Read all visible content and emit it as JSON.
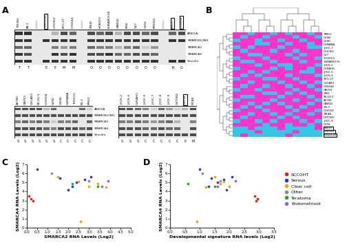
{
  "panel_labels": [
    "A",
    "B",
    "C",
    "D"
  ],
  "proteins": [
    "ARID1A",
    "SMARCB1/INI1",
    "SMARCA2",
    "SMARCA4",
    "Vinculin"
  ],
  "boxed": [
    "TOV112D",
    "BIN-67",
    "COV434",
    "OVK18"
  ],
  "blots": [
    {
      "lanes": [
        "TYK-NU",
        "PA-1",
        "ladder",
        "TOV112D",
        "COV362",
        "EFO-27",
        "COV644",
        "ladder",
        "SNU8",
        "HOB910",
        "KURAMOCHI",
        "OAW42",
        "RKN",
        "OV7",
        "OV56",
        "RMUGS",
        "ladder",
        "BIN-67",
        "COV434"
      ],
      "codes": [
        "T",
        "T",
        null,
        "E",
        "E",
        "M",
        "M",
        null,
        "O",
        "O",
        "O",
        "O",
        "O",
        "O",
        "O",
        "O",
        null,
        "R",
        "G"
      ],
      "show_proteins": true,
      "bands": [
        [
          0.8,
          0.8,
          0,
          0,
          0.3,
          0.7,
          0.6,
          0,
          0.7,
          0.6,
          0.7,
          0.3,
          0.7,
          0.7,
          0.6,
          0.7,
          0,
          0.6,
          0.7
        ],
        [
          0.8,
          0.8,
          0,
          0.8,
          0.8,
          0.8,
          0.8,
          0,
          0.8,
          0.8,
          0.8,
          0.8,
          0.8,
          0.8,
          0.8,
          0.8,
          0,
          0.8,
          0.8
        ],
        [
          0.6,
          0.6,
          0,
          0,
          0.5,
          0.4,
          0.5,
          0,
          0.6,
          0.5,
          0.5,
          0.3,
          0.5,
          0.6,
          0.2,
          0.4,
          0,
          0,
          0
        ],
        [
          0.8,
          0.7,
          0,
          0,
          0.8,
          0.7,
          0.8,
          0,
          0.7,
          0.7,
          0.8,
          0.6,
          0.6,
          0.7,
          0.7,
          0.6,
          0,
          0,
          0
        ],
        [
          0.8,
          0.8,
          0,
          0.8,
          0.8,
          0.8,
          0.8,
          0,
          0.8,
          0.8,
          0.8,
          0.8,
          0.8,
          0.8,
          0.8,
          0.8,
          0,
          0.8,
          0.8
        ]
      ]
    },
    {
      "lanes": [
        "A2780",
        "CAOV3",
        "OVCAR3",
        "SK-OV-3",
        "COV504",
        "OV90",
        "OVISE",
        "OVMANA",
        "TOV21G",
        "ES-2",
        "RMG1"
      ],
      "codes": [
        "S",
        "S",
        "S",
        "S",
        "S",
        "S",
        "C",
        "C",
        "C",
        "C",
        "C"
      ],
      "show_proteins": true,
      "bands": [
        [
          0.7,
          0.7,
          0.7,
          0.7,
          0.3,
          0.6,
          0,
          0.1,
          0,
          0.6,
          0.2
        ],
        [
          0.7,
          0.7,
          0.7,
          0.7,
          0.7,
          0.7,
          0.7,
          0.7,
          0.7,
          0.7,
          0.7
        ],
        [
          0.5,
          0.6,
          0.5,
          0.6,
          0.5,
          0.2,
          0.5,
          0.5,
          0.6,
          0.1,
          0.6
        ],
        [
          0.7,
          0.7,
          0.7,
          0.7,
          0.6,
          0.5,
          0.7,
          0.7,
          0.7,
          0.6,
          0.7
        ],
        [
          0.7,
          0.7,
          0.7,
          0.7,
          0.7,
          0.7,
          0.7,
          0.7,
          0.7,
          0.7,
          0.7
        ]
      ]
    },
    {
      "lanes": [
        "JHOS-2",
        "JHOS-4",
        "OVSAHO",
        "JHOC-5",
        "JHOC-7",
        "JHOC-8",
        "JHOC-9",
        "OVTOKO",
        "OVK18",
        "MCAS"
      ],
      "codes": [
        "S",
        "S",
        "S",
        "C",
        "C",
        "C",
        "C",
        "C",
        "E",
        "M"
      ],
      "show_proteins": false,
      "bands": [
        [
          0.7,
          0.7,
          0.6,
          0.5,
          0.2,
          0.6,
          0.4,
          0.2,
          0.3,
          0.7
        ],
        [
          0.7,
          0.7,
          0.7,
          0.7,
          0.7,
          0.7,
          0.7,
          0.7,
          0.7,
          0.7
        ],
        [
          0.5,
          0.5,
          0.6,
          0.5,
          0.4,
          0.5,
          0.6,
          0.3,
          0,
          0.5
        ],
        [
          0.7,
          0.7,
          0.7,
          0.6,
          0.6,
          0.7,
          0.6,
          0.6,
          0,
          0.7
        ],
        [
          0.7,
          0.7,
          0.7,
          0.7,
          0.7,
          0.7,
          0.7,
          0.7,
          0.7,
          0.7
        ]
      ]
    }
  ],
  "heatmap": {
    "rows": [
      "RMG1",
      "OVISE",
      "OV90",
      "OVMANA",
      "JHOC-7",
      "COV362",
      "OV7",
      "TOV21G",
      "KURAMOCHI",
      "JHOS-2",
      "OVSAHO",
      "JHOC-5",
      "JHOS-4",
      "EFO-27",
      "OVCAR3",
      "COV644",
      "CAOV3",
      "RKN",
      "SK-OV-3",
      "A2780",
      "OAW42",
      "ES-2",
      "COV504",
      "MCAS",
      "OVTOKO",
      "JHOC-8",
      "OV56",
      "BIN-67",
      "COV434",
      "TOV112D"
    ],
    "boxed_rows": [
      "BIN-67",
      "COV434",
      "TOV112D"
    ],
    "colors": [
      "#33c6e6",
      "#ff33cc"
    ],
    "cells": [
      [
        1,
        1,
        0,
        1,
        1,
        0,
        1,
        0,
        1,
        1,
        0,
        1
      ],
      [
        1,
        0,
        1,
        1,
        0,
        1,
        1,
        1,
        0,
        1,
        1,
        0
      ],
      [
        0,
        1,
        1,
        0,
        1,
        1,
        0,
        1,
        1,
        0,
        1,
        1
      ],
      [
        1,
        1,
        1,
        0,
        0,
        1,
        1,
        0,
        1,
        1,
        0,
        1
      ],
      [
        0,
        1,
        0,
        1,
        1,
        1,
        0,
        1,
        1,
        1,
        0,
        0
      ],
      [
        1,
        0,
        1,
        1,
        1,
        0,
        1,
        1,
        0,
        1,
        1,
        1
      ],
      [
        1,
        1,
        0,
        0,
        1,
        1,
        1,
        0,
        1,
        0,
        1,
        1
      ],
      [
        0,
        1,
        1,
        1,
        0,
        1,
        1,
        1,
        0,
        1,
        1,
        0
      ],
      [
        1,
        0,
        0,
        1,
        1,
        0,
        1,
        1,
        1,
        0,
        1,
        1
      ],
      [
        1,
        1,
        1,
        0,
        1,
        1,
        0,
        0,
        1,
        1,
        1,
        0
      ],
      [
        0,
        1,
        1,
        1,
        1,
        0,
        1,
        0,
        1,
        1,
        0,
        1
      ],
      [
        1,
        1,
        0,
        1,
        0,
        1,
        1,
        1,
        1,
        0,
        0,
        1
      ],
      [
        1,
        0,
        1,
        0,
        1,
        1,
        1,
        0,
        1,
        1,
        1,
        0
      ],
      [
        0,
        1,
        1,
        1,
        0,
        0,
        1,
        1,
        0,
        1,
        1,
        1
      ],
      [
        1,
        1,
        0,
        1,
        1,
        1,
        0,
        1,
        1,
        0,
        1,
        0
      ],
      [
        1,
        0,
        1,
        1,
        0,
        1,
        1,
        0,
        1,
        1,
        0,
        1
      ],
      [
        0,
        1,
        1,
        0,
        1,
        1,
        1,
        1,
        0,
        1,
        1,
        0
      ],
      [
        1,
        1,
        1,
        1,
        0,
        0,
        1,
        0,
        1,
        0,
        1,
        1
      ],
      [
        1,
        0,
        0,
        1,
        1,
        1,
        0,
        1,
        1,
        1,
        0,
        1
      ],
      [
        0,
        1,
        1,
        1,
        1,
        0,
        1,
        1,
        0,
        1,
        1,
        0
      ],
      [
        1,
        1,
        0,
        1,
        0,
        1,
        0,
        1,
        1,
        1,
        0,
        1
      ],
      [
        1,
        0,
        1,
        0,
        1,
        1,
        1,
        0,
        1,
        0,
        1,
        1
      ],
      [
        0,
        1,
        1,
        1,
        0,
        1,
        1,
        1,
        0,
        1,
        1,
        0
      ],
      [
        1,
        1,
        0,
        1,
        1,
        0,
        1,
        0,
        1,
        1,
        0,
        1
      ],
      [
        1,
        0,
        1,
        1,
        1,
        1,
        0,
        1,
        0,
        1,
        1,
        1
      ],
      [
        0,
        1,
        1,
        0,
        1,
        0,
        1,
        1,
        1,
        0,
        1,
        0
      ],
      [
        1,
        1,
        1,
        1,
        0,
        1,
        1,
        0,
        1,
        1,
        0,
        1
      ],
      [
        0,
        0,
        1,
        0,
        0,
        0,
        1,
        0,
        0,
        0,
        0,
        1
      ],
      [
        0,
        0,
        0,
        1,
        0,
        0,
        0,
        0,
        1,
        0,
        0,
        0
      ],
      [
        0,
        1,
        0,
        0,
        0,
        0,
        0,
        1,
        0,
        0,
        0,
        0
      ]
    ]
  },
  "chart_data": [
    {
      "type": "scatter",
      "marker": "o",
      "x_label": "SMARCA2 RNA Levels (Log2)",
      "y_label": "SMARCA4 RNA Levels (Log2)",
      "xlim": [
        0,
        5
      ],
      "ylim": [
        0,
        7
      ],
      "xticks": [
        {
          "value": 0,
          "label": "0.0"
        },
        0.5,
        {
          "value": 1,
          "label": "1.0"
        },
        1.5,
        {
          "value": 2,
          "label": "2.0"
        },
        2.5,
        {
          "value": 3,
          "label": "3.0"
        },
        3.5,
        {
          "value": 4,
          "label": "4.0"
        },
        4.5,
        {
          "value": 5,
          "label": "5.0"
        }
      ],
      "yticks": [
        0,
        1,
        2,
        3,
        4,
        5,
        6,
        7
      ],
      "series": [
        {
          "name": "SCCOHT",
          "color": "#e0201b",
          "x": [
            0.1,
            0.2,
            0.3
          ],
          "y": [
            3.5,
            3.2,
            3.0
          ]
        },
        {
          "name": "Serous",
          "color": "#1f3fbf",
          "x": [
            0.5,
            1.6,
            2.4,
            2.8,
            3.1,
            2.2,
            2.0
          ],
          "y": [
            6.5,
            5.5,
            5.0,
            5.3,
            5.6,
            4.6,
            4.2
          ]
        },
        {
          "name": "Clear cell",
          "color": "#f39c1f",
          "x": [
            2.6,
            1.5,
            3.4,
            3.0,
            3.8,
            2.5
          ],
          "y": [
            0.7,
            5.6,
            4.9,
            4.6,
            4.5,
            5.1
          ]
        },
        {
          "name": "Other",
          "color": "#8c8c8c",
          "x": [
            1.2,
            3.0
          ],
          "y": [
            6.0,
            5.2
          ]
        },
        {
          "name": "Teratoma",
          "color": "#2ca02c",
          "x": [
            2.2,
            3.4
          ],
          "y": [
            4.9,
            4.6
          ]
        },
        {
          "name": "Endometrioid",
          "color": "#8e6bbf",
          "x": [
            3.6,
            3.9
          ],
          "y": [
            4.6,
            5.2
          ]
        }
      ]
    },
    {
      "type": "scatter",
      "marker": "o",
      "legend": "right",
      "x_label": "Developmental signature RNA levels (Log2)",
      "y_label": "SMARCA4 RNA Levels (Log2)",
      "xlim": [
        0,
        3.5
      ],
      "ylim": [
        0,
        7
      ],
      "xticks": [
        {
          "value": 0,
          "label": "0.0"
        },
        0.5,
        {
          "value": 1,
          "label": "1.0"
        },
        1.5,
        {
          "value": 2,
          "label": "2.0"
        },
        2.5,
        {
          "value": 3,
          "label": "3.0"
        },
        3.5
      ],
      "yticks": [
        0,
        1,
        2,
        3,
        4,
        5,
        6,
        7
      ],
      "series": [
        {
          "name": "SCCOHT",
          "color": "#e0201b",
          "x": [
            2.85,
            2.95,
            2.9
          ],
          "y": [
            3.5,
            3.2,
            3.0
          ]
        },
        {
          "name": "Serous",
          "color": "#1f3fbf",
          "x": [
            1.0,
            1.4,
            1.6,
            1.8,
            2.1,
            1.3,
            1.9
          ],
          "y": [
            6.5,
            5.5,
            5.0,
            5.3,
            5.6,
            4.6,
            4.2
          ]
        },
        {
          "name": "Clear cell",
          "color": "#f39c1f",
          "x": [
            0.9,
            1.5,
            1.7,
            2.0,
            1.2,
            1.8
          ],
          "y": [
            0.7,
            5.6,
            4.9,
            4.6,
            4.5,
            5.1
          ]
        },
        {
          "name": "Other",
          "color": "#8c8c8c",
          "x": [
            1.1,
            1.7
          ],
          "y": [
            6.0,
            5.2
          ]
        },
        {
          "name": "Teratoma",
          "color": "#2ca02c",
          "x": [
            0.6,
            1.5
          ],
          "y": [
            4.9,
            4.6
          ]
        },
        {
          "name": "Endometrioid",
          "color": "#8e6bbf",
          "x": [
            1.6,
            2.2
          ],
          "y": [
            4.6,
            5.2
          ]
        }
      ]
    }
  ]
}
